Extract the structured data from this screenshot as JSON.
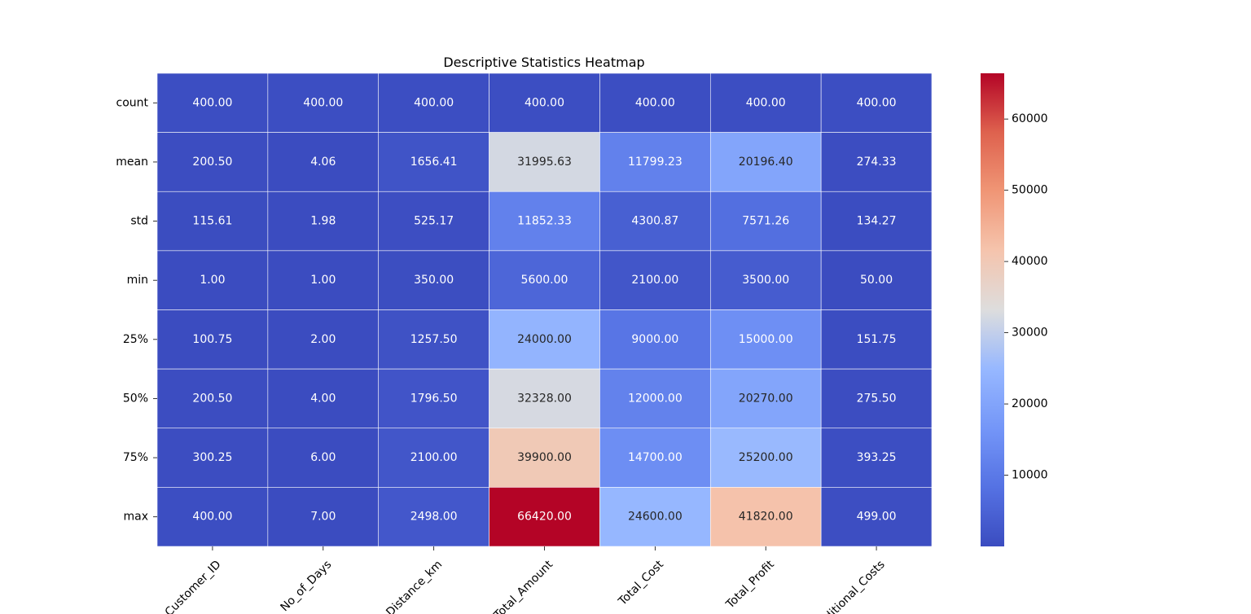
{
  "chart_data": {
    "type": "heatmap",
    "title": "Descriptive Statistics Heatmap",
    "x_categories": [
      "Customer_ID",
      "No_of_Days",
      "Distance_km",
      "Total_Amount",
      "Total_Cost",
      "Total_Profit",
      "Additional_Costs"
    ],
    "y_categories": [
      "count",
      "mean",
      "std",
      "min",
      "25%",
      "50%",
      "75%",
      "max"
    ],
    "values": [
      [
        400.0,
        400.0,
        400.0,
        400.0,
        400.0,
        400.0,
        400.0
      ],
      [
        200.5,
        4.06,
        1656.41,
        31995.63,
        11799.23,
        20196.4,
        274.33
      ],
      [
        115.61,
        1.98,
        525.17,
        11852.33,
        4300.87,
        7571.26,
        134.27
      ],
      [
        1.0,
        1.0,
        350.0,
        5600.0,
        2100.0,
        3500.0,
        50.0
      ],
      [
        100.75,
        2.0,
        1257.5,
        24000.0,
        9000.0,
        15000.0,
        151.75
      ],
      [
        200.5,
        4.0,
        1796.5,
        32328.0,
        12000.0,
        20270.0,
        275.5
      ],
      [
        300.25,
        6.0,
        2100.0,
        39900.0,
        14700.0,
        25200.0,
        393.25
      ],
      [
        400.0,
        7.0,
        2498.0,
        66420.0,
        24600.0,
        41820.0,
        499.0
      ]
    ],
    "cell_labels": [
      [
        "400.00",
        "400.00",
        "400.00",
        "400.00",
        "400.00",
        "400.00",
        "400.00"
      ],
      [
        "200.50",
        "4.06",
        "1656.41",
        "31995.63",
        "11799.23",
        "20196.40",
        "274.33"
      ],
      [
        "115.61",
        "1.98",
        "525.17",
        "11852.33",
        "4300.87",
        "7571.26",
        "134.27"
      ],
      [
        "1.00",
        "1.00",
        "350.00",
        "5600.00",
        "2100.00",
        "3500.00",
        "50.00"
      ],
      [
        "100.75",
        "2.00",
        "1257.50",
        "24000.00",
        "9000.00",
        "15000.00",
        "151.75"
      ],
      [
        "200.50",
        "4.00",
        "1796.50",
        "32328.00",
        "12000.00",
        "20270.00",
        "275.50"
      ],
      [
        "300.25",
        "6.00",
        "2100.00",
        "39900.00",
        "14700.00",
        "25200.00",
        "393.25"
      ],
      [
        "400.00",
        "7.00",
        "2498.00",
        "66420.00",
        "24600.00",
        "41820.00",
        "499.00"
      ]
    ],
    "colormap": "coolwarm",
    "color_range": [
      1.0,
      66420.0
    ],
    "colorbar_ticks": [
      10000,
      20000,
      30000,
      40000,
      50000,
      60000
    ],
    "colorbar_tick_labels": [
      "10000",
      "20000",
      "30000",
      "40000",
      "50000",
      "60000"
    ],
    "cell_border_color": "#ffffff",
    "x_tick_rotation_deg": 45
  }
}
